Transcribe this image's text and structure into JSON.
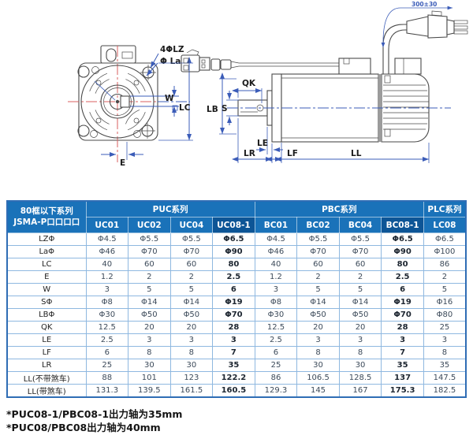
{
  "drawing": {
    "labels": {
      "bolt_holes": "4ΦLZ",
      "flange_dia": "Φ La",
      "w": "W",
      "lc": "LC",
      "e": "E",
      "lb": "LB",
      "s": "S",
      "qk": "QK",
      "le": "LE",
      "lr": "LR",
      "lf": "LF",
      "ll": "LL",
      "cable_length": "300±30"
    }
  },
  "table": {
    "corner": {
      "line1": "80框以下系列",
      "line2": "JSMA-P口口口口"
    },
    "groups": [
      {
        "label": "PUC系列",
        "columns": [
          "UC01",
          "UC02",
          "UC04",
          "UC08-1"
        ]
      },
      {
        "label": "PBC系列",
        "columns": [
          "BC01",
          "BC02",
          "BC04",
          "BC08-1"
        ]
      },
      {
        "label": "PLC系列",
        "columns": [
          "LC08"
        ]
      }
    ],
    "highlight_columns": [
      3,
      7
    ],
    "rows": [
      {
        "label": "LZΦ",
        "values": [
          "Φ4.5",
          "Φ5.5",
          "Φ5.5",
          "Φ6.5",
          "Φ4.5",
          "Φ5.5",
          "Φ5.5",
          "Φ6.5",
          "Φ6.5"
        ]
      },
      {
        "label": "LaΦ",
        "values": [
          "Φ46",
          "Φ70",
          "Φ70",
          "Φ90",
          "Φ46",
          "Φ70",
          "Φ70",
          "Φ90",
          "Φ100"
        ]
      },
      {
        "label": "LC",
        "values": [
          "40",
          "60",
          "60",
          "80",
          "40",
          "60",
          "60",
          "80",
          "86"
        ]
      },
      {
        "label": "E",
        "values": [
          "1.2",
          "2",
          "2",
          "2.5",
          "1.2",
          "2",
          "2",
          "2.5",
          "2"
        ]
      },
      {
        "label": "W",
        "values": [
          "3",
          "5",
          "5",
          "6",
          "3",
          "5",
          "5",
          "6",
          "5"
        ]
      },
      {
        "label": "SΦ",
        "values": [
          "Φ8",
          "Φ14",
          "Φ14",
          "Φ19",
          "Φ8",
          "Φ14",
          "Φ14",
          "Φ19",
          "Φ16"
        ]
      },
      {
        "label": "LBΦ",
        "values": [
          "Φ30",
          "Φ50",
          "Φ50",
          "Φ70",
          "Φ30",
          "Φ50",
          "Φ50",
          "Φ70",
          "Φ80"
        ]
      },
      {
        "label": "QK",
        "values": [
          "12.5",
          "20",
          "20",
          "28",
          "12.5",
          "20",
          "20",
          "28",
          "25"
        ]
      },
      {
        "label": "LE",
        "values": [
          "2.5",
          "3",
          "3",
          "3",
          "2.5",
          "3",
          "3",
          "3",
          "3"
        ]
      },
      {
        "label": "LF",
        "values": [
          "6",
          "8",
          "8",
          "7",
          "6",
          "8",
          "8",
          "7",
          "8"
        ]
      },
      {
        "label": "LR",
        "values": [
          "25",
          "30",
          "30",
          "35",
          "25",
          "30",
          "30",
          "35",
          "35"
        ]
      },
      {
        "label": "LL(不带煞车)",
        "values": [
          "88",
          "101",
          "123",
          "122.2",
          "86",
          "106.5",
          "128.5",
          "137",
          "147.5"
        ]
      },
      {
        "label": "LL(带煞车)",
        "values": [
          "131.3",
          "139.5",
          "161.5",
          "160.5",
          "129.3",
          "145",
          "167",
          "175.3",
          "182.5"
        ]
      }
    ]
  },
  "notes": [
    "*PUC08-1/PBC08-1出力轴为35mm",
    "*PUC08/PBC08出力轴为40mm"
  ],
  "colors": {
    "header_blue": "#1a72b9",
    "header_highlight": "#0d5596",
    "grid_border": "#8fb8e0",
    "outer_border": "#2f6db5",
    "dimension_blue": "#3b5cb8",
    "centerline_red": "#d95f5f"
  }
}
